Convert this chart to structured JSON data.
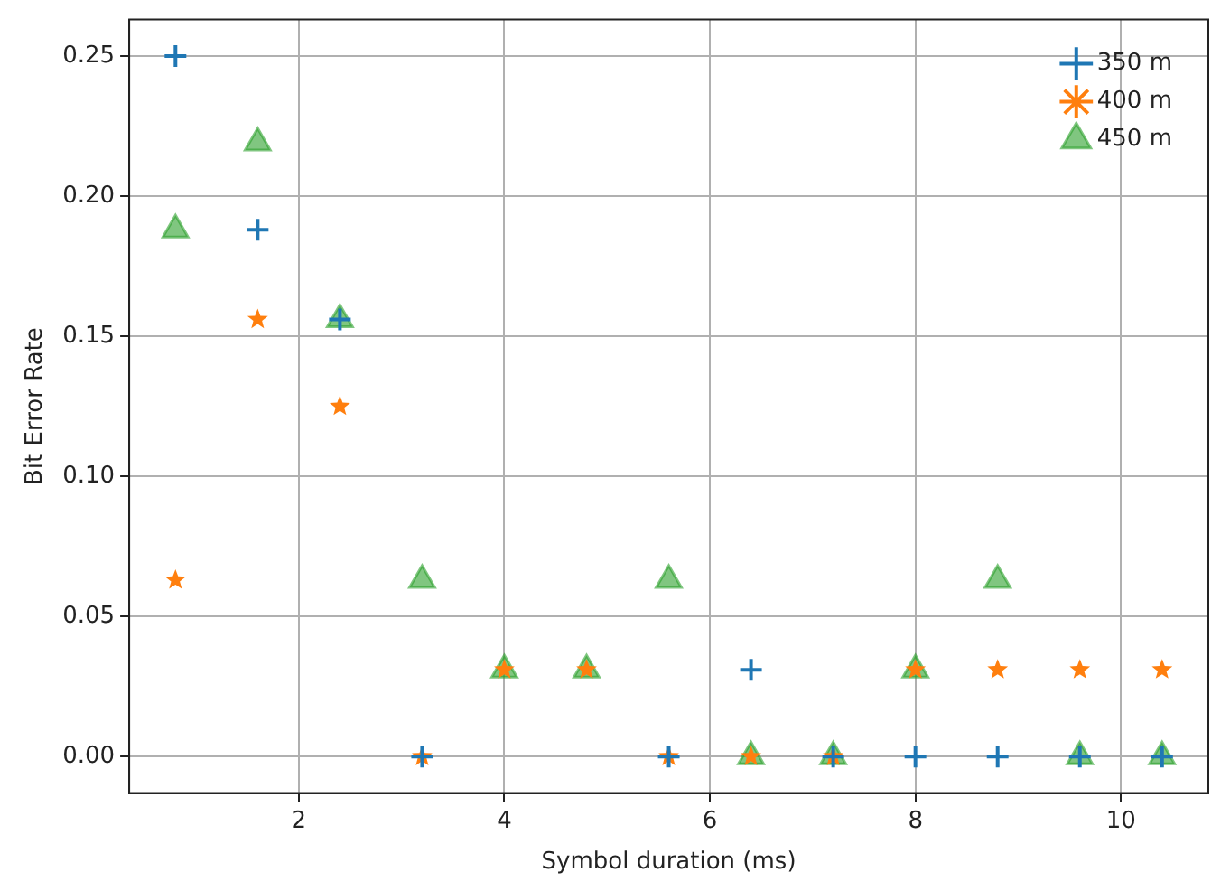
{
  "chart_data": {
    "type": "scatter",
    "xlabel": "Symbol duration (ms)",
    "ylabel": "Bit Error Rate",
    "x": [
      0.8,
      1.6,
      2.4,
      3.2,
      4.0,
      4.8,
      5.6,
      6.4,
      7.2,
      8.0,
      8.8,
      9.6,
      10.4
    ],
    "series": [
      {
        "name": "350 m",
        "color": "#1f77b4",
        "marker": "cross",
        "values": [
          0.25,
          0.188,
          0.156,
          0,
          null,
          null,
          0,
          0.031,
          0,
          0,
          0,
          0,
          0
        ]
      },
      {
        "name": "400 m",
        "color": "#ff7f0e",
        "marker": "star",
        "values": [
          0.063,
          0.156,
          0.125,
          0,
          0.031,
          0.031,
          0,
          0,
          0,
          0.031,
          0.031,
          0.031,
          0.031
        ]
      },
      {
        "name": "450 m",
        "color": "#2ca02c",
        "marker": "triangle",
        "values": [
          0.188,
          0.219,
          0.156,
          0.063,
          0.031,
          0.031,
          0.063,
          0,
          0,
          0.031,
          0.063,
          0,
          0
        ]
      }
    ],
    "xlim": [
      0.35,
      10.85
    ],
    "xticks": [
      2,
      4,
      6,
      8,
      10
    ],
    "ylim": [
      -0.013,
      0.263
    ],
    "yticks": [
      {
        "value": 0,
        "label": "0.00"
      },
      {
        "value": 0.05,
        "label": "0.05"
      },
      {
        "value": 0.1,
        "label": "0.10"
      },
      {
        "value": 0.15,
        "label": "0.15"
      },
      {
        "value": 0.2,
        "label": "0.20"
      },
      {
        "value": 0.25,
        "label": "0.25"
      }
    ],
    "grid": true,
    "legend": "top right"
  }
}
